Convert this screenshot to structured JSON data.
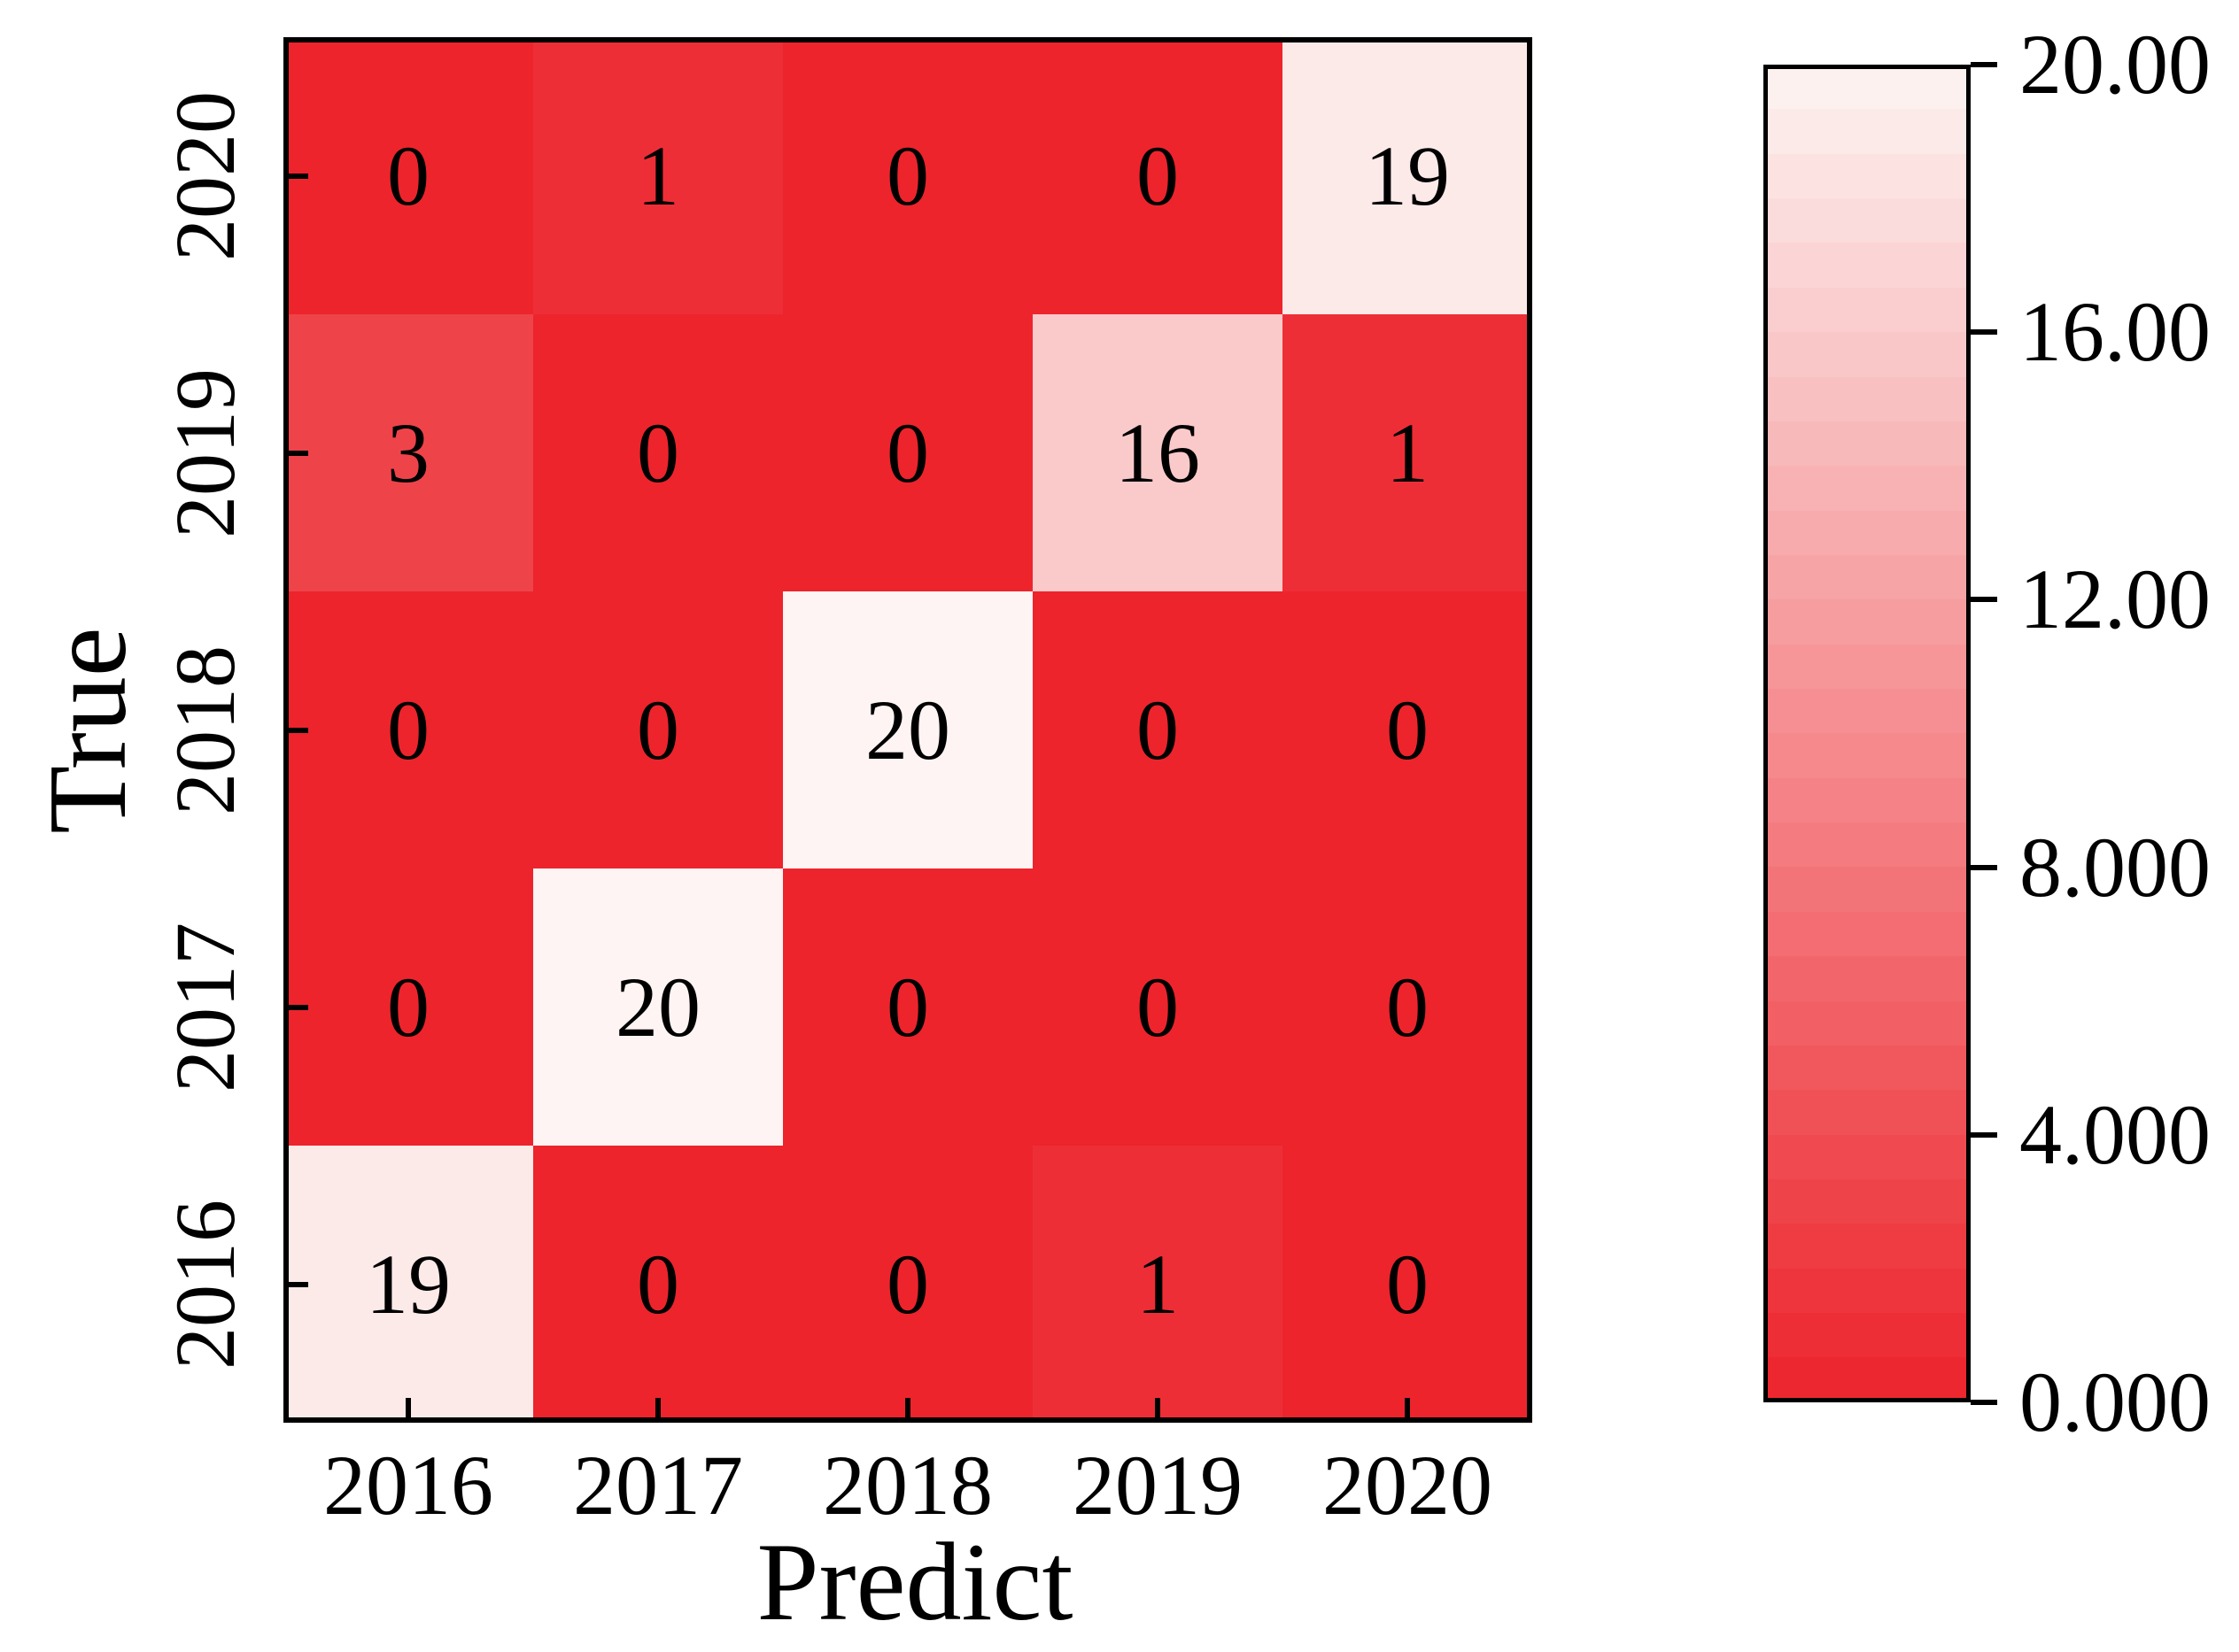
{
  "figure": {
    "background": "#ffffff",
    "text_color": "#000000"
  },
  "chart_data": {
    "type": "heatmap",
    "xlabel": "Predict",
    "ylabel": "True",
    "x_categories": [
      "2016",
      "2017",
      "2018",
      "2019",
      "2020"
    ],
    "y_categories_top_to_bottom": [
      "2020",
      "2019",
      "2018",
      "2017",
      "2016"
    ],
    "rows": [
      {
        "true_label": "2020",
        "values": [
          0,
          1,
          0,
          0,
          19
        ]
      },
      {
        "true_label": "2019",
        "values": [
          3,
          0,
          0,
          16,
          1
        ]
      },
      {
        "true_label": "2018",
        "values": [
          0,
          0,
          20,
          0,
          0
        ]
      },
      {
        "true_label": "2017",
        "values": [
          0,
          20,
          0,
          0,
          0
        ]
      },
      {
        "true_label": "2016",
        "values": [
          19,
          0,
          0,
          1,
          0
        ]
      }
    ],
    "value_range": [
      0,
      20
    ],
    "colormap": {
      "low": "#ed242c",
      "high": "#fdf4f3",
      "bands": 30
    },
    "colorbar_ticks": [
      "20.00",
      "16.00",
      "12.00",
      "8.000",
      "4.000",
      "0.000"
    ],
    "legend_position": "right",
    "grid": false
  }
}
